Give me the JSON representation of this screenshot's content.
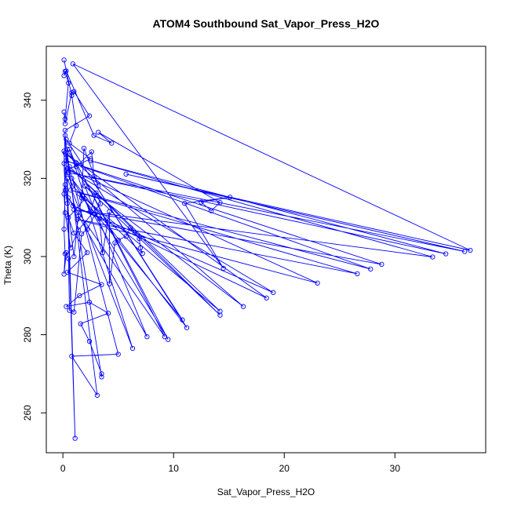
{
  "chart_data": {
    "type": "line",
    "title": "ATOM4 Southbound Sat_Vapor_Press_H2O",
    "xlabel": "Sat_Vapor_Press_H2O",
    "ylabel": "Theta (K)",
    "xlim": [
      -1.5,
      38.2
    ],
    "ylim": [
      249.8,
      353.8
    ],
    "xticks": [
      0,
      10,
      20,
      30
    ],
    "yticks": [
      260,
      280,
      300,
      320,
      340
    ],
    "grid": false,
    "legend": "none",
    "series_color": "#0000ff",
    "markers": "open-circle",
    "series": [
      {
        "points": [
          [
            0.1,
            350.3
          ],
          [
            0.8,
            341.2
          ],
          [
            1.2,
            333.5
          ],
          [
            0.6,
            329.0
          ],
          [
            2.5,
            325.0
          ],
          [
            0.3,
            322.0
          ],
          [
            0.9,
            318.0
          ],
          [
            2.0,
            314.8
          ],
          [
            0.5,
            310.0
          ],
          [
            1.0,
            306.0
          ],
          [
            2.2,
            301.0
          ],
          [
            0.4,
            296.0
          ],
          [
            3.5,
            292.8
          ],
          [
            1.5,
            290.0
          ],
          [
            0.3,
            287.2
          ],
          [
            2.4,
            288.3
          ],
          [
            4.1,
            285.5
          ],
          [
            1.6,
            282.8
          ],
          [
            2.4,
            278.3
          ],
          [
            3.5,
            270.0
          ],
          [
            3.5,
            269.2
          ],
          [
            0.3,
            326.0
          ],
          [
            5.0,
            275.0
          ],
          [
            0.8,
            274.5
          ],
          [
            3.1,
            264.5
          ],
          [
            0.2,
            331.0
          ],
          [
            1.1,
            253.5
          ],
          [
            0.4,
            320.0
          ],
          [
            6.3,
            276.5
          ],
          [
            0.6,
            327.5
          ],
          [
            7.6,
            279.5
          ],
          [
            0.5,
            315.0
          ],
          [
            9.2,
            279.5
          ],
          [
            1.2,
            324.0
          ],
          [
            9.5,
            278.8
          ],
          [
            0.8,
            320.0
          ],
          [
            11.2,
            281.8
          ],
          [
            0.3,
            330.0
          ],
          [
            10.8,
            283.8
          ],
          [
            1.5,
            316.0
          ],
          [
            14.2,
            286.0
          ],
          [
            0.6,
            323.0
          ],
          [
            14.2,
            285.0
          ],
          [
            2.0,
            318.0
          ],
          [
            16.3,
            287.2
          ],
          [
            0.2,
            326.5
          ],
          [
            18.4,
            289.4
          ],
          [
            0.9,
            313.0
          ],
          [
            19.0,
            290.8
          ],
          [
            0.4,
            322.5
          ],
          [
            23.0,
            293.2
          ],
          [
            1.3,
            309.5
          ],
          [
            26.6,
            295.6
          ],
          [
            0.7,
            317.0
          ],
          [
            27.8,
            296.8
          ],
          [
            0.3,
            324.5
          ],
          [
            28.8,
            298.0
          ],
          [
            1.0,
            312.0
          ],
          [
            33.4,
            299.9
          ],
          [
            2.5,
            324.5
          ],
          [
            34.6,
            300.7
          ],
          [
            0.5,
            321.5
          ],
          [
            36.3,
            301.3
          ],
          [
            5.7,
            321.1
          ],
          [
            36.8,
            301.6
          ],
          [
            0.9,
            349.3
          ],
          [
            14.5,
            297.0
          ],
          [
            11.0,
            313.6
          ],
          [
            15.1,
            315.2
          ],
          [
            12.5,
            313.9
          ],
          [
            13.4,
            311.7
          ],
          [
            14.2,
            313.8
          ],
          [
            3.2,
            331.8
          ],
          [
            4.4,
            329.0
          ],
          [
            2.8,
            331.0
          ],
          [
            0.3,
            347.5
          ],
          [
            0.1,
            346.3
          ],
          [
            0.2,
            347.4
          ],
          [
            0.5,
            344.4
          ],
          [
            0.2,
            335.2
          ],
          [
            0.1,
            337.0
          ],
          [
            0.2,
            334.0
          ],
          [
            0.8,
            342.0
          ],
          [
            1.0,
            342.2
          ],
          [
            2.4,
            336.0
          ],
          [
            0.2,
            332.3
          ],
          [
            0.1,
            323.8
          ],
          [
            0.2,
            317.0
          ],
          [
            0.1,
            307.0
          ],
          [
            0.2,
            300.7
          ],
          [
            0.1,
            295.5
          ],
          [
            0.3,
            301.0
          ],
          [
            0.5,
            299.5
          ],
          [
            0.6,
            286.2
          ],
          [
            1.0,
            285.8
          ],
          [
            1.7,
            305.8
          ],
          [
            2.2,
            307.0
          ],
          [
            2.9,
            310.8
          ],
          [
            3.3,
            309.7
          ],
          [
            3.6,
            301.0
          ],
          [
            4.2,
            311.5
          ],
          [
            4.2,
            293.0
          ],
          [
            4.7,
            303.5
          ],
          [
            5.0,
            304.2
          ],
          [
            5.7,
            305.2
          ],
          [
            6.1,
            307.4
          ],
          [
            6.5,
            306.0
          ],
          [
            6.9,
            304.6
          ],
          [
            7.0,
            302.2
          ],
          [
            7.2,
            300.8
          ],
          [
            1.8,
            315.4
          ],
          [
            2.5,
            311.5
          ],
          [
            3.0,
            316.3
          ],
          [
            3.4,
            313.5
          ],
          [
            1.4,
            306.8
          ],
          [
            0.7,
            302.2
          ],
          [
            0.2,
            311.2
          ],
          [
            0.1,
            316.0
          ],
          [
            0.4,
            327.4
          ],
          [
            1.2,
            323.0
          ],
          [
            2.6,
            326.8
          ],
          [
            2.8,
            320.5
          ],
          [
            3.2,
            318.0
          ],
          [
            1.9,
            327.7
          ],
          [
            1.7,
            315.0
          ],
          [
            1.4,
            310.4
          ],
          [
            1.0,
            300.0
          ],
          [
            0.4,
            313.6
          ],
          [
            0.2,
            318.4
          ],
          [
            0.1,
            327.0
          ]
        ]
      }
    ]
  }
}
